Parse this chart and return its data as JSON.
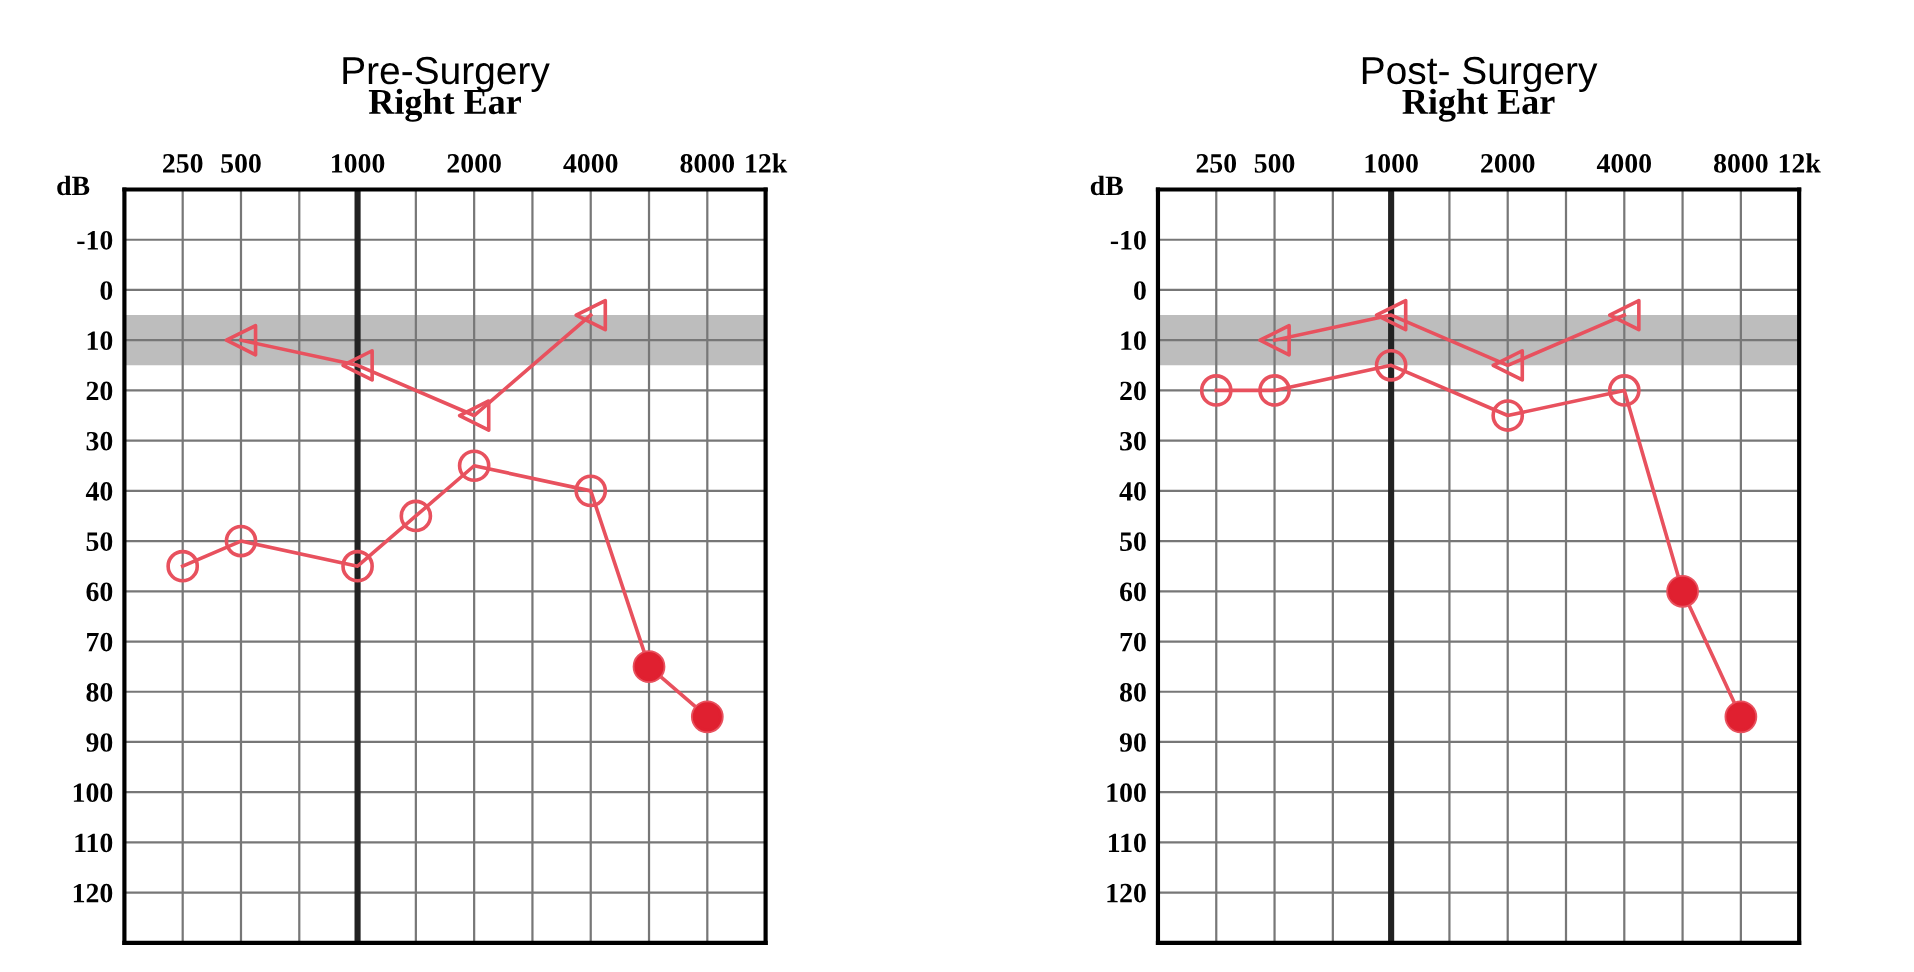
{
  "chart_data": [
    {
      "type": "line",
      "title": "Pre-Surgery",
      "subtitle": "Right Ear",
      "ylabel": "dB",
      "categories": [
        null,
        "250",
        "500",
        null,
        "1000",
        null,
        "2000",
        null,
        "4000",
        null,
        "8000",
        "12k"
      ],
      "ylim": [
        130,
        -20
      ],
      "yticks": [
        -10,
        0,
        10,
        20,
        30,
        40,
        50,
        60,
        70,
        80,
        90,
        100,
        110,
        120
      ],
      "grid": true,
      "bands": [
        {
          "axis": "y",
          "from": 5,
          "to": 15,
          "color": "#bdbdbd"
        }
      ],
      "ref_lines": [
        {
          "axis": "x",
          "value": "1000",
          "color": "#222222"
        }
      ],
      "series": [
        {
          "color": "#e8515e",
          "marker": "circle",
          "values": [
            null,
            55,
            50,
            null,
            55,
            45,
            35,
            null,
            40,
            75,
            85,
            null
          ]
        },
        {
          "color": "#e02030",
          "type": "scatter",
          "marker": "circle",
          "values": [
            null,
            null,
            null,
            null,
            null,
            null,
            null,
            null,
            null,
            75,
            85,
            null
          ]
        },
        {
          "color": "#e8515e",
          "marker": "triangle",
          "values": [
            null,
            null,
            10,
            null,
            15,
            null,
            25,
            null,
            5,
            null,
            null,
            null
          ]
        }
      ]
    },
    {
      "type": "line",
      "title": "Post- Surgery",
      "subtitle": "Right Ear",
      "ylabel": "dB",
      "categories": [
        null,
        "250",
        "500",
        null,
        "1000",
        null,
        "2000",
        null,
        "4000",
        null,
        "8000",
        "12k"
      ],
      "ylim": [
        130,
        -20
      ],
      "yticks": [
        -10,
        0,
        10,
        20,
        30,
        40,
        50,
        60,
        70,
        80,
        90,
        100,
        110,
        120
      ],
      "grid": true,
      "bands": [
        {
          "axis": "y",
          "from": 5,
          "to": 15,
          "color": "#bdbdbd"
        }
      ],
      "ref_lines": [
        {
          "axis": "x",
          "value": "1000",
          "color": "#222222"
        }
      ],
      "series": [
        {
          "color": "#e8515e",
          "marker": "circle",
          "values": [
            null,
            20,
            20,
            null,
            15,
            null,
            25,
            null,
            20,
            60,
            85,
            null
          ]
        },
        {
          "color": "#e02030",
          "type": "scatter",
          "marker": "circle",
          "values": [
            null,
            null,
            null,
            null,
            null,
            null,
            null,
            null,
            null,
            60,
            85,
            null
          ]
        },
        {
          "color": "#e8515e",
          "marker": "triangle",
          "values": [
            null,
            null,
            10,
            null,
            5,
            null,
            15,
            null,
            5,
            null,
            null,
            null
          ]
        }
      ]
    }
  ]
}
